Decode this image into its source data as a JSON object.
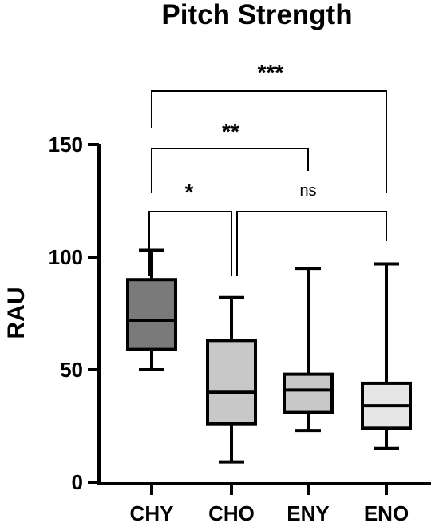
{
  "chart_data": {
    "type": "box",
    "title": "Pitch Strength",
    "xlabel": "",
    "ylabel": "RAU",
    "ylim": [
      0,
      150
    ],
    "yticks": [
      0,
      50,
      100,
      150
    ],
    "categories": [
      "CHY",
      "CHO",
      "ENY",
      "ENO"
    ],
    "boxes": [
      {
        "category": "CHY",
        "min": 50,
        "q1": 59,
        "median": 72,
        "q3": 90,
        "max": 103,
        "fill": "#7a7a7a"
      },
      {
        "category": "CHO",
        "min": 9,
        "q1": 26,
        "median": 40,
        "q3": 63,
        "max": 82,
        "fill": "#c8c8c8"
      },
      {
        "category": "ENY",
        "min": 23,
        "q1": 31,
        "median": 41,
        "q3": 48,
        "max": 95,
        "fill": "#c8c8c8"
      },
      {
        "category": "ENO",
        "min": 15,
        "q1": 24,
        "median": 34,
        "q3": 44,
        "max": 97,
        "fill": "#e6e6e6"
      }
    ],
    "significance": [
      {
        "from": "CHY",
        "to": "CHO",
        "label": "*"
      },
      {
        "from": "CHO",
        "to": "ENO",
        "label": "ns"
      },
      {
        "from": "CHY",
        "to": "ENY",
        "label": "**"
      },
      {
        "from": "CHY",
        "to": "ENO",
        "label": "***"
      }
    ],
    "grid": false,
    "legend": "none"
  }
}
